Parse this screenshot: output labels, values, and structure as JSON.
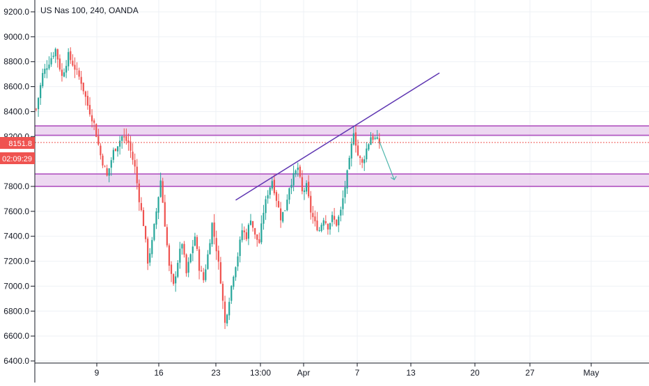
{
  "header": {
    "title": "US Nas 100, 240, OANDA"
  },
  "colors": {
    "up": "#26a69a",
    "down": "#ef5350",
    "zone_fill": "#e1bee7",
    "zone_border": "#ab47bc",
    "trendline": "#5e35b1",
    "arrow": "#4db6ac",
    "price_line": "#ef5350",
    "grid": "#eef1f5",
    "axis": "#131722"
  },
  "price_badge": {
    "price": "8151.8",
    "countdown": "02:09:29"
  },
  "chart_data": {
    "type": "candlestick",
    "title": "US Nas 100, 240, OANDA",
    "ylim": [
      6400,
      9200
    ],
    "y_ticks": [
      6400,
      6600,
      6800,
      7000,
      7200,
      7400,
      7600,
      7800,
      8000,
      8200,
      8400,
      8600,
      8800,
      9000,
      9200
    ],
    "y_tick_labels": [
      "6400.0",
      "6600.0",
      "6800.0",
      "7000.0",
      "7200.0",
      "7400.0",
      "7600.0",
      "7800.0",
      "8000.0",
      "8200.0",
      "8400.0",
      "8600.0",
      "8800.0",
      "9000.0",
      "9200.0"
    ],
    "x_ticks": [
      "9",
      "16",
      "23",
      "13:00",
      "Apr",
      "7",
      "13",
      "20",
      "27",
      "May"
    ],
    "grid": true,
    "current_price": 8151.8,
    "zones": [
      {
        "low": 8210,
        "high": 8285
      },
      {
        "low": 7800,
        "high": 7900
      }
    ],
    "anchors": [
      [
        0,
        8420
      ],
      [
        3,
        8700
      ],
      [
        6,
        8800
      ],
      [
        9,
        8900
      ],
      [
        12,
        8680
      ],
      [
        15,
        8850
      ],
      [
        18,
        8750
      ],
      [
        21,
        8640
      ],
      [
        24,
        8450
      ],
      [
        27,
        8300
      ],
      [
        30,
        8050
      ],
      [
        33,
        7880
      ],
      [
        36,
        8080
      ],
      [
        40,
        8200
      ],
      [
        43,
        8150
      ],
      [
        46,
        7950
      ],
      [
        48,
        7700
      ],
      [
        50,
        7500
      ],
      [
        52,
        7200
      ],
      [
        54,
        7350
      ],
      [
        56,
        7600
      ],
      [
        58,
        7850
      ],
      [
        60,
        7500
      ],
      [
        62,
        7150
      ],
      [
        64,
        7000
      ],
      [
        66,
        7200
      ],
      [
        68,
        7350
      ],
      [
        70,
        7100
      ],
      [
        72,
        7250
      ],
      [
        74,
        7400
      ],
      [
        76,
        7150
      ],
      [
        78,
        7050
      ],
      [
        80,
        7250
      ],
      [
        82,
        7500
      ],
      [
        84,
        7300
      ],
      [
        86,
        7050
      ],
      [
        88,
        6700
      ],
      [
        90,
        6900
      ],
      [
        92,
        7100
      ],
      [
        94,
        7250
      ],
      [
        96,
        7450
      ],
      [
        98,
        7400
      ],
      [
        100,
        7550
      ],
      [
        102,
        7400
      ],
      [
        104,
        7350
      ],
      [
        106,
        7600
      ],
      [
        108,
        7750
      ],
      [
        110,
        7850
      ],
      [
        112,
        7700
      ],
      [
        114,
        7550
      ],
      [
        116,
        7620
      ],
      [
        118,
        7800
      ],
      [
        120,
        7880
      ],
      [
        122,
        7950
      ],
      [
        124,
        7750
      ],
      [
        126,
        7800
      ],
      [
        128,
        7600
      ],
      [
        130,
        7500
      ],
      [
        132,
        7450
      ],
      [
        134,
        7550
      ],
      [
        136,
        7480
      ],
      [
        138,
        7550
      ],
      [
        140,
        7500
      ],
      [
        142,
        7600
      ],
      [
        144,
        7800
      ],
      [
        146,
        8000
      ],
      [
        148,
        8250
      ],
      [
        150,
        8050
      ],
      [
        152,
        7980
      ],
      [
        154,
        8100
      ],
      [
        156,
        8200
      ],
      [
        158,
        8180
      ],
      [
        160,
        8152
      ]
    ],
    "trendline": {
      "from": [
        93,
        7690
      ],
      "to": [
        188,
        8710
      ]
    },
    "arrow": {
      "from": [
        160,
        8160
      ],
      "to": [
        165,
        7910
      ]
    }
  }
}
